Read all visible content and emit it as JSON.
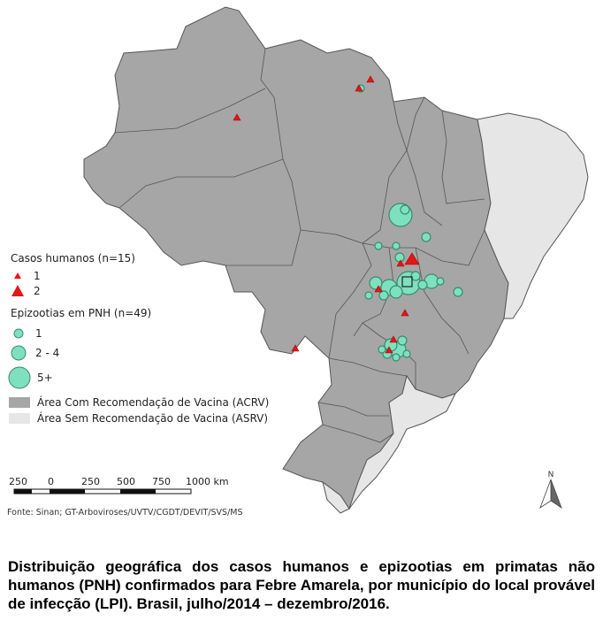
{
  "legend": {
    "human_cases_title": "Casos humanos (n=15)",
    "human_case_sizes": [
      {
        "label": "1"
      },
      {
        "label": "2"
      }
    ],
    "epizootics_title": "Epizootias em PNH (n=49)",
    "epizootic_sizes": [
      {
        "label": "1"
      },
      {
        "label": "2 - 4"
      },
      {
        "label": "5+"
      }
    ],
    "areas": [
      {
        "label": "Área Com Recomendação de Vacina (ACRV)",
        "color": "#a6a6a6"
      },
      {
        "label": "Área Sem Recomendação de Vacina (ASRV)",
        "color": "#e6e6e6"
      }
    ]
  },
  "scale_bar": {
    "ticks": [
      "250",
      "0",
      "250",
      "500",
      "750",
      "1000 km"
    ]
  },
  "north_arrow": {
    "label": "N"
  },
  "source": "Fonte: Sinan; GT-Arboviroses/UVTV/CGDT/DEVIT/SVS/MS",
  "caption": "Distribuição geográfica dos casos humanos e epizootias em primatas não humanos (PNH) confirmados para Febre Amarela, por município do local provável de infecção (LPI). Brasil, julho/2014 – dezembro/2016.",
  "colors": {
    "acrv": "#a6a6a6",
    "asrv": "#e6e6e6",
    "border": "#555555",
    "epizootia_fill": "#7fe0c0",
    "epizootia_stroke": "#3a8a70",
    "case_fill": "#e01818"
  }
}
